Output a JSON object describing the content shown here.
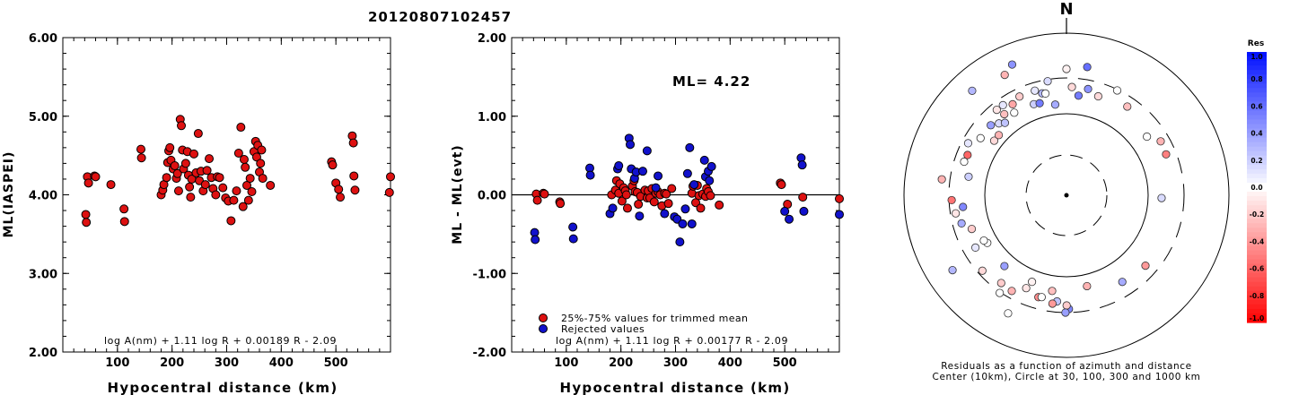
{
  "title": "20120807102457",
  "colors": {
    "used": "#dd1111",
    "rejected": "#1111cc",
    "stroke": "#000000"
  },
  "chart_data": [
    {
      "type": "scatter",
      "panel": "left",
      "ylabel": "ML(IASPEI)",
      "xlabel": "Hypocentral distance (km)",
      "xlim": [
        0,
        600
      ],
      "ylim": [
        2.0,
        6.0
      ],
      "x_ticks": [
        "100",
        "200",
        "300",
        "400",
        "500"
      ],
      "y_ticks": [
        "2.00",
        "3.00",
        "4.00",
        "5.00",
        "6.00"
      ],
      "formula": "log A(nm) + 1.11 log R + 0.00189 R - 2.09",
      "series": [
        {
          "points": [
            [
              42,
              3.75
            ],
            [
              43,
              3.65
            ],
            [
              45,
              4.23
            ],
            [
              47,
              4.15
            ],
            [
              58,
              4.24
            ],
            [
              60,
              4.23
            ],
            [
              88,
              4.13
            ],
            [
              112,
              3.82
            ],
            [
              113,
              3.66
            ],
            [
              143,
              4.58
            ],
            [
              144,
              4.47
            ],
            [
              180,
              4.0
            ],
            [
              183,
              4.06
            ],
            [
              185,
              4.13
            ],
            [
              190,
              4.22
            ],
            [
              192,
              4.41
            ],
            [
              194,
              4.56
            ],
            [
              196,
              4.6
            ],
            [
              198,
              4.44
            ],
            [
              202,
              4.33
            ],
            [
              205,
              4.37
            ],
            [
              208,
              4.21
            ],
            [
              210,
              4.27
            ],
            [
              212,
              4.05
            ],
            [
              215,
              4.96
            ],
            [
              217,
              4.88
            ],
            [
              219,
              4.57
            ],
            [
              221,
              4.33
            ],
            [
              225,
              4.4
            ],
            [
              228,
              4.55
            ],
            [
              230,
              4.25
            ],
            [
              232,
              4.1
            ],
            [
              234,
              3.97
            ],
            [
              236,
              4.2
            ],
            [
              240,
              4.52
            ],
            [
              244,
              4.28
            ],
            [
              248,
              4.78
            ],
            [
              250,
              4.18
            ],
            [
              253,
              4.3
            ],
            [
              257,
              4.05
            ],
            [
              261,
              4.13
            ],
            [
              264,
              4.31
            ],
            [
              268,
              4.46
            ],
            [
              272,
              4.22
            ],
            [
              275,
              4.08
            ],
            [
              280,
              4.0
            ],
            [
              283,
              4.23
            ],
            [
              287,
              4.22
            ],
            [
              293,
              4.09
            ],
            [
              298,
              3.96
            ],
            [
              303,
              3.92
            ],
            [
              308,
              3.67
            ],
            [
              313,
              3.93
            ],
            [
              318,
              4.05
            ],
            [
              322,
              4.53
            ],
            [
              326,
              4.86
            ],
            [
              330,
              3.85
            ],
            [
              332,
              4.45
            ],
            [
              334,
              4.35
            ],
            [
              337,
              4.12
            ],
            [
              340,
              3.93
            ],
            [
              343,
              4.21
            ],
            [
              346,
              4.04
            ],
            [
              350,
              4.55
            ],
            [
              353,
              4.68
            ],
            [
              355,
              4.48
            ],
            [
              357,
              4.63
            ],
            [
              360,
              4.29
            ],
            [
              362,
              4.4
            ],
            [
              364,
              4.57
            ],
            [
              366,
              4.21
            ],
            [
              380,
              4.12
            ],
            [
              492,
              4.42
            ],
            [
              494,
              4.38
            ],
            [
              500,
              4.15
            ],
            [
              505,
              4.07
            ],
            [
              508,
              3.97
            ],
            [
              530,
              4.75
            ],
            [
              532,
              4.66
            ],
            [
              533,
              4.24
            ],
            [
              535,
              4.06
            ],
            [
              600,
              4.23
            ],
            [
              598,
              4.03
            ]
          ]
        }
      ]
    },
    {
      "type": "scatter",
      "panel": "middle",
      "ylabel": "ML - ML(evt)",
      "xlabel": "Hypocentral distance (km)",
      "xlim": [
        0,
        600
      ],
      "ylim": [
        -2.0,
        2.0
      ],
      "x_ticks": [
        "100",
        "200",
        "300",
        "400",
        "500"
      ],
      "y_ticks": [
        "-2.00",
        "-1.00",
        "0.00",
        "1.00",
        "2.00"
      ],
      "annotation": "ML= 4.22",
      "formula": "log A(nm) + 1.11 log R + 0.00177 R - 2.09",
      "legend_position": "bottom-left",
      "series": [
        {
          "name": "25%-75% values for trimmed mean",
          "points": [
            [
              45,
              0.01
            ],
            [
              47,
              -0.07
            ],
            [
              58,
              0.02
            ],
            [
              60,
              0.01
            ],
            [
              88,
              -0.09
            ],
            [
              89,
              -0.11
            ],
            [
              183,
              0.0
            ],
            [
              190,
              0.06
            ],
            [
              192,
              0.18
            ],
            [
              196,
              0.02
            ],
            [
              198,
              0.14
            ],
            [
              202,
              -0.08
            ],
            [
              205,
              0.09
            ],
            [
              208,
              0.05
            ],
            [
              210,
              0.0
            ],
            [
              212,
              -0.17
            ],
            [
              221,
              0.11
            ],
            [
              224,
              0.18
            ],
            [
              226,
              0.04
            ],
            [
              230,
              0.03
            ],
            [
              232,
              -0.12
            ],
            [
              236,
              -0.02
            ],
            [
              244,
              0.06
            ],
            [
              248,
              -0.04
            ],
            [
              250,
              0.05
            ],
            [
              253,
              -0.04
            ],
            [
              257,
              0.08
            ],
            [
              261,
              -0.09
            ],
            [
              264,
              0.02
            ],
            [
              268,
              0.04
            ],
            [
              272,
              0.0
            ],
            [
              275,
              -0.14
            ],
            [
              280,
              0.02
            ],
            [
              283,
              0.01
            ],
            [
              287,
              -0.11
            ],
            [
              293,
              0.08
            ],
            [
              330,
              0.02
            ],
            [
              332,
              0.11
            ],
            [
              337,
              -0.1
            ],
            [
              340,
              0.12
            ],
            [
              343,
              -0.01
            ],
            [
              346,
              -0.17
            ],
            [
              350,
              0.01
            ],
            [
              355,
              -0.02
            ],
            [
              357,
              0.08
            ],
            [
              360,
              0.04
            ],
            [
              364,
              -0.01
            ],
            [
              380,
              -0.13
            ],
            [
              492,
              0.15
            ],
            [
              494,
              0.13
            ],
            [
              505,
              -0.12
            ],
            [
              533,
              -0.03
            ],
            [
              600,
              -0.05
            ]
          ]
        },
        {
          "name": "Rejected values",
          "points": [
            [
              42,
              -0.48
            ],
            [
              43,
              -0.57
            ],
            [
              112,
              -0.41
            ],
            [
              113,
              -0.56
            ],
            [
              143,
              0.34
            ],
            [
              144,
              0.25
            ],
            [
              180,
              -0.24
            ],
            [
              185,
              -0.17
            ],
            [
              194,
              0.33
            ],
            [
              196,
              0.37
            ],
            [
              215,
              0.72
            ],
            [
              217,
              0.64
            ],
            [
              219,
              0.33
            ],
            [
              225,
              0.21
            ],
            [
              228,
              0.29
            ],
            [
              234,
              -0.27
            ],
            [
              240,
              0.3
            ],
            [
              248,
              0.56
            ],
            [
              264,
              0.09
            ],
            [
              268,
              0.24
            ],
            [
              280,
              -0.24
            ],
            [
              298,
              -0.28
            ],
            [
              303,
              -0.31
            ],
            [
              308,
              -0.6
            ],
            [
              313,
              -0.37
            ],
            [
              318,
              -0.18
            ],
            [
              322,
              0.27
            ],
            [
              326,
              0.6
            ],
            [
              330,
              -0.37
            ],
            [
              334,
              0.13
            ],
            [
              353,
              0.44
            ],
            [
              355,
              0.23
            ],
            [
              360,
              0.3
            ],
            [
              362,
              0.18
            ],
            [
              366,
              0.36
            ],
            [
              500,
              -0.21
            ],
            [
              508,
              -0.31
            ],
            [
              530,
              0.47
            ],
            [
              532,
              0.38
            ],
            [
              535,
              -0.21
            ],
            [
              600,
              -0.25
            ]
          ]
        }
      ]
    },
    {
      "type": "polar",
      "panel": "right",
      "north_label": "N",
      "caption_line1": "Residuals as a function of azimuth and distance",
      "caption_line2": "Center (10km), Circle at 30, 100, 300 and 1000 km",
      "colorbar_title": "Res",
      "colorbar_ticks": [
        "1.0",
        "0.8",
        "0.6",
        "0.4",
        "0.2",
        "0.0",
        "-0.2",
        "-0.4",
        "-0.6",
        "-0.8",
        "-1.0"
      ],
      "points": [
        [
          1,
          3.23,
          0.25
        ],
        [
          1,
          2.57,
          0.35
        ],
        [
          1,
          1.6,
          0.15
        ],
        [
          1,
          1.18,
          -0.5
        ],
        [
          1,
          0.94,
          0.0
        ],
        [
          1,
          0.6,
          -0.25
        ],
        [
          1,
          0.31,
          -0.15
        ],
        [
          1,
          0.16,
          0.6
        ],
        [
          1,
          0.2,
          0.45
        ],
        [
          1,
          0.12,
          0.55
        ],
        [
          1,
          0.05,
          -0.15
        ],
        [
          1,
          6.05,
          0.3
        ],
        [
          1,
          5.94,
          0.2
        ],
        [
          1,
          5.99,
          0.1
        ],
        [
          1,
          5.81,
          -0.3
        ],
        [
          1,
          5.84,
          -0.2
        ],
        [
          1,
          5.75,
          -0.35
        ],
        [
          1,
          5.72,
          0.0
        ],
        [
          1,
          5.67,
          0.1
        ],
        [
          1,
          5.63,
          -0.25
        ],
        [
          1,
          5.6,
          -0.1
        ],
        [
          1,
          5.55,
          0.3
        ],
        [
          1,
          5.53,
          0.15
        ],
        [
          1,
          5.36,
          -0.15
        ],
        [
          1,
          5.3,
          0.0
        ],
        [
          1,
          5.2,
          0.1
        ],
        [
          1,
          5.03,
          0.0
        ],
        [
          1,
          4.9,
          0.2
        ],
        [
          1,
          4.84,
          -0.3
        ],
        [
          1,
          4.6,
          0.5
        ],
        [
          1,
          4.55,
          -0.1
        ],
        [
          1,
          4.45,
          0.35
        ],
        [
          1,
          4.37,
          -0.2
        ],
        [
          1,
          4.17,
          0.0
        ],
        [
          1,
          4.19,
          0.1
        ],
        [
          1,
          3.98,
          -0.15
        ],
        [
          1,
          3.78,
          -0.2
        ],
        [
          1,
          3.55,
          -0.1
        ],
        [
          1,
          3.52,
          -0.05
        ],
        [
          1,
          3.41,
          -0.45
        ],
        [
          1,
          3.12,
          0.5
        ],
        [
          1,
          3.14,
          -0.2
        ],
        [
          1,
          4.13,
          0.3
        ],
        [
          1,
          4.21,
          0.0
        ],
        [
          1,
          5.1,
          -0.6
        ],
        [
          1,
          4.67,
          -0.55
        ],
        [
          1,
          5.44,
          -0.3
        ],
        [
          1,
          5.46,
          0.4
        ],
        [
          1,
          5.58,
          0.25
        ],
        [
          1,
          5.89,
          0.45
        ],
        [
          1,
          6.12,
          0.15
        ],
        [
          1,
          6.16,
          0.35
        ],
        [
          1,
          6.08,
          0.0
        ],
        [
          1,
          6.0,
          0.55
        ],
        [
          1,
          1.05,
          -0.3
        ],
        [
          1,
          0.45,
          0.0
        ],
        [
          1,
          0.0,
          -0.05
        ],
        [
          1,
          3.38,
          0.0
        ],
        [
          1,
          3.29,
          -0.25
        ],
        [
          1,
          3.27,
          -0.4
        ],
        [
          1,
          3.15,
          0.4
        ],
        [
          1,
          2.92,
          -0.3
        ],
        [
          1,
          2.3,
          -0.4
        ],
        [
          1,
          3.6,
          0.0
        ],
        [
          1,
          3.66,
          -0.3
        ],
        [
          1,
          3.74,
          0.0
        ],
        [
          1,
          3.86,
          0.4
        ]
      ]
    }
  ]
}
